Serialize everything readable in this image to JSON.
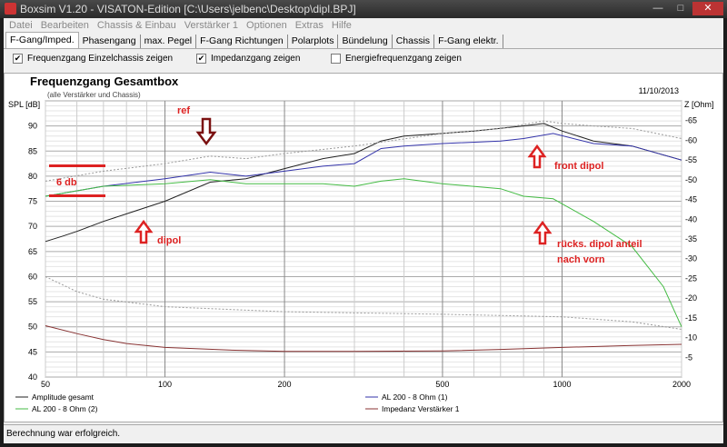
{
  "window": {
    "title": "Boxsim V1.20 - VISATON-Edition [C:\\Users\\jelbenc\\Desktop\\dipl.BPJ]"
  },
  "menu": [
    "Datei",
    "Bearbeiten",
    "Chassis & Einbau",
    "Verstärker 1",
    "Optionen",
    "Extras",
    "Hilfe"
  ],
  "tabs": [
    "F-Gang/Imped.",
    "Phasengang",
    "max. Pegel",
    "F-Gang Richtungen",
    "Polarplots",
    "Bündelung",
    "Chassis",
    "F-Gang elektr."
  ],
  "options": [
    {
      "label": "Frequenzgang Einzelchassis zeigen",
      "checked": true
    },
    {
      "label": "Impedanzgang zeigen",
      "checked": true
    },
    {
      "label": "Energiefrequenzgang zeigen",
      "checked": false
    }
  ],
  "status": "Berechnung war erfolgreich.",
  "chart_data": {
    "type": "line",
    "title": "Frequenzgang Gesamtbox",
    "subtitle": "(alle Verstärker und Chassis)",
    "date": "11/10/2013",
    "ylabel": "SPL [dB]",
    "y2label": "Z [Ohm]",
    "xscale": "log",
    "xlim": [
      50,
      2000
    ],
    "ylim": [
      40,
      95
    ],
    "y2lim": [
      0,
      70
    ],
    "xticks": [
      50,
      100,
      200,
      500,
      1000,
      2000
    ],
    "yticks": [
      40,
      45,
      50,
      55,
      60,
      65,
      70,
      75,
      80,
      85,
      90
    ],
    "y2ticks": [
      5,
      10,
      15,
      20,
      25,
      30,
      35,
      40,
      45,
      50,
      55,
      60,
      65
    ],
    "grid": true,
    "series": [
      {
        "name": "Amplitude gesamt",
        "color": "#222222",
        "axis": "left",
        "x": [
          50,
          55,
          60,
          70,
          80,
          100,
          130,
          160,
          200,
          250,
          300,
          350,
          400,
          500,
          600,
          800,
          900,
          1000,
          1200,
          1500,
          2000
        ],
        "y": [
          67,
          68,
          69,
          71,
          72.5,
          75,
          78.8,
          79.5,
          81.5,
          83.5,
          84.5,
          87,
          88,
          88.5,
          89,
          90,
          90.5,
          89,
          87,
          86,
          83.2
        ]
      },
      {
        "name": "AL 200 - 8 Ohm (1)",
        "color": "#3333aa",
        "axis": "left",
        "x": [
          50,
          70,
          100,
          130,
          160,
          200,
          250,
          300,
          350,
          400,
          500,
          700,
          800,
          950,
          1200,
          1500,
          2000
        ],
        "y": [
          76,
          78,
          79.5,
          80.8,
          80,
          81,
          82,
          82.5,
          85.5,
          86,
          86.5,
          87,
          87.5,
          88.5,
          86.5,
          86,
          83.2
        ]
      },
      {
        "name": "AL 200 - 8 Ohm (2)",
        "color": "#44bb44",
        "axis": "left",
        "x": [
          50,
          70,
          100,
          130,
          160,
          200,
          250,
          300,
          350,
          400,
          500,
          700,
          800,
          950,
          1000,
          1200,
          1500,
          1800,
          2000
        ],
        "y": [
          76,
          78,
          78.5,
          79.3,
          78.5,
          78.5,
          78.5,
          78,
          79,
          79.5,
          78.5,
          77.5,
          76,
          75.5,
          74.5,
          71,
          66,
          58,
          50
        ]
      },
      {
        "name": "Impedanz Verstärker 1",
        "color": "#883333",
        "axis": "right",
        "x": [
          50,
          60,
          70,
          80,
          100,
          150,
          200,
          300,
          500,
          700,
          1000,
          1500,
          2000
        ],
        "y": [
          13,
          11,
          9.5,
          8.5,
          7.5,
          6.8,
          6.5,
          6.5,
          6.6,
          7,
          7.5,
          8,
          8.3
        ]
      },
      {
        "name": "",
        "color": "#999999",
        "dashed": true,
        "axis": "left",
        "x": [
          50,
          70,
          100,
          130,
          160,
          200,
          300,
          500,
          700,
          900,
          1000,
          1200,
          1500,
          2000
        ],
        "y": [
          79,
          81,
          82.5,
          84,
          83.5,
          84.5,
          86,
          88.5,
          89.5,
          91,
          90.5,
          90,
          89.5,
          87.5
        ]
      },
      {
        "name": "",
        "color": "#999999",
        "dashed": true,
        "axis": "left",
        "x": [
          50,
          60,
          70,
          100,
          200,
          500,
          1000,
          1500,
          2000
        ],
        "y": [
          60,
          57,
          55.5,
          54,
          53,
          52.5,
          52,
          51,
          49.5
        ]
      }
    ],
    "annotations": [
      "ref",
      "6 db",
      "dipol",
      "front dipol",
      "rücks. dipol anteil",
      "nach vorn"
    ],
    "annotation_color": "#dd2222"
  }
}
